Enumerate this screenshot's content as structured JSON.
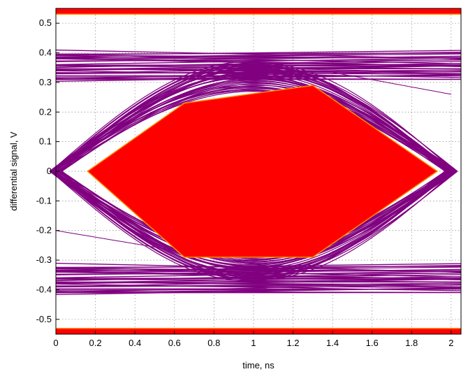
{
  "chart_data": {
    "type": "line",
    "title": "",
    "xlabel": "time, ns",
    "ylabel": "differential signal, V",
    "xlim": [
      0,
      2.05
    ],
    "ylim": [
      -0.55,
      0.55
    ],
    "grid": true,
    "grid_style": "dotted",
    "x_ticks": [
      "0",
      "0.2",
      "0.4",
      "0.6",
      "0.8",
      "1",
      "1.2",
      "1.4",
      "1.6",
      "1.8",
      "2"
    ],
    "y_ticks": [
      "-0.5",
      "-0.4",
      "-0.3",
      "-0.2",
      "-0.1",
      "0",
      "0.1",
      "0.2",
      "0.3",
      "0.4",
      "0.5"
    ],
    "colors": {
      "eye_traces": "#800080",
      "mask": "#ff0000",
      "mask_edge": "#ff8c00"
    },
    "eye_levels": {
      "high_min": 0.31,
      "high_max": 0.4,
      "low_min": -0.41,
      "low_max": -0.32
    },
    "crossings": [
      0.0,
      2.0
    ],
    "mask_polygon": [
      {
        "x": 0.16,
        "y": 0.0
      },
      {
        "x": 0.65,
        "y": 0.23
      },
      {
        "x": 1.3,
        "y": 0.29
      },
      {
        "x": 1.93,
        "y": 0.0
      },
      {
        "x": 1.3,
        "y": -0.29
      },
      {
        "x": 0.65,
        "y": -0.29
      }
    ],
    "limit_bars": [
      0.54,
      -0.54
    ]
  }
}
